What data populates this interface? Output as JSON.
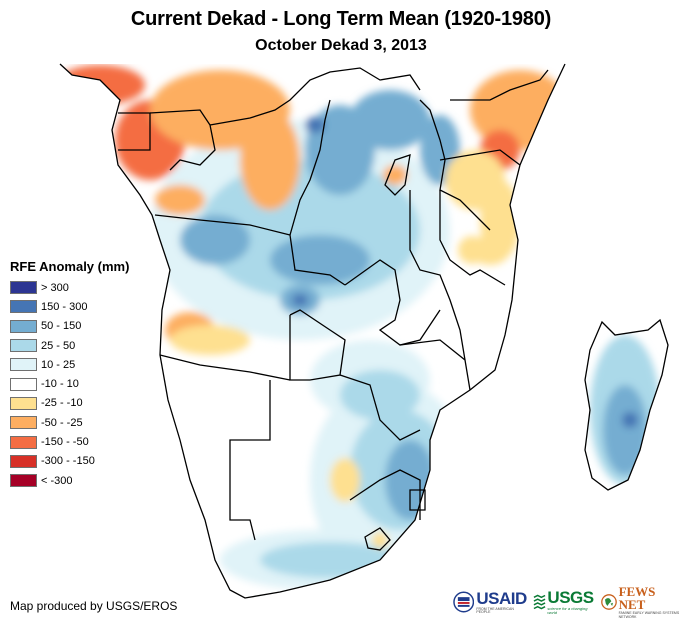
{
  "title": "Current Dekad - Long Term Mean (1920-1980)",
  "subtitle": "October Dekad 3, 2013",
  "legend": {
    "title": "RFE Anomaly (mm)",
    "items": [
      {
        "label": "> 300",
        "color": "#2c3592"
      },
      {
        "label": "150 - 300",
        "color": "#4575b4"
      },
      {
        "label": "50 - 150",
        "color": "#74add1"
      },
      {
        "label": "25 - 50",
        "color": "#abd9e9"
      },
      {
        "label": "10 - 25",
        "color": "#e0f3f8"
      },
      {
        "label": "-10 - 10",
        "color": "#ffffff"
      },
      {
        "label": "-25 - -10",
        "color": "#fee090"
      },
      {
        "label": "-50 - -25",
        "color": "#fdae61"
      },
      {
        "label": "-150 - -50",
        "color": "#f46d43"
      },
      {
        "label": "-300 - -150",
        "color": "#d73027"
      },
      {
        "label": "< -300",
        "color": "#a50026"
      }
    ]
  },
  "credit": "Map produced by USGS/EROS",
  "logos": {
    "usaid": {
      "name": "USAID",
      "tagline": "FROM THE AMERICAN PEOPLE"
    },
    "usgs": {
      "name": "USGS",
      "tagline": "science for a changing world"
    },
    "fews": {
      "name": "FEWS NET",
      "tagline": "FAMINE EARLY WARNING SYSTEMS NETWORK"
    }
  },
  "map": {
    "region": "Southern and Central Africa",
    "variable": "Rainfall estimate anomaly",
    "features": [
      {
        "area": "Gabon / Cameroon coast",
        "anomaly_class": "-150 - -50"
      },
      {
        "area": "Central African Republic / northern DRC",
        "anomaly_class": "-50 - -25"
      },
      {
        "area": "Southern Somalia / eastern Kenya",
        "anomaly_class": "-50 - -25"
      },
      {
        "area": "Central Kenya highlands",
        "anomaly_class": "-150 - -50"
      },
      {
        "area": "Coastal Tanzania",
        "anomaly_class": "-25 - -10"
      },
      {
        "area": "Western Angola",
        "anomaly_class": "-50 - -25"
      },
      {
        "area": "Eastern DRC / Uganda",
        "anomaly_class": "50 - 150"
      },
      {
        "area": "Central DRC",
        "anomaly_class": "150 - 300"
      },
      {
        "area": "Eastern Madagascar",
        "anomaly_class": "50 - 150"
      },
      {
        "area": "Eastern South Africa / Swaziland",
        "anomaly_class": "50 - 150"
      },
      {
        "area": "Namibia / Botswana",
        "anomaly_class": "-10 - 10"
      },
      {
        "area": "Lesotho",
        "anomaly_class": "-25 - -10"
      }
    ]
  }
}
